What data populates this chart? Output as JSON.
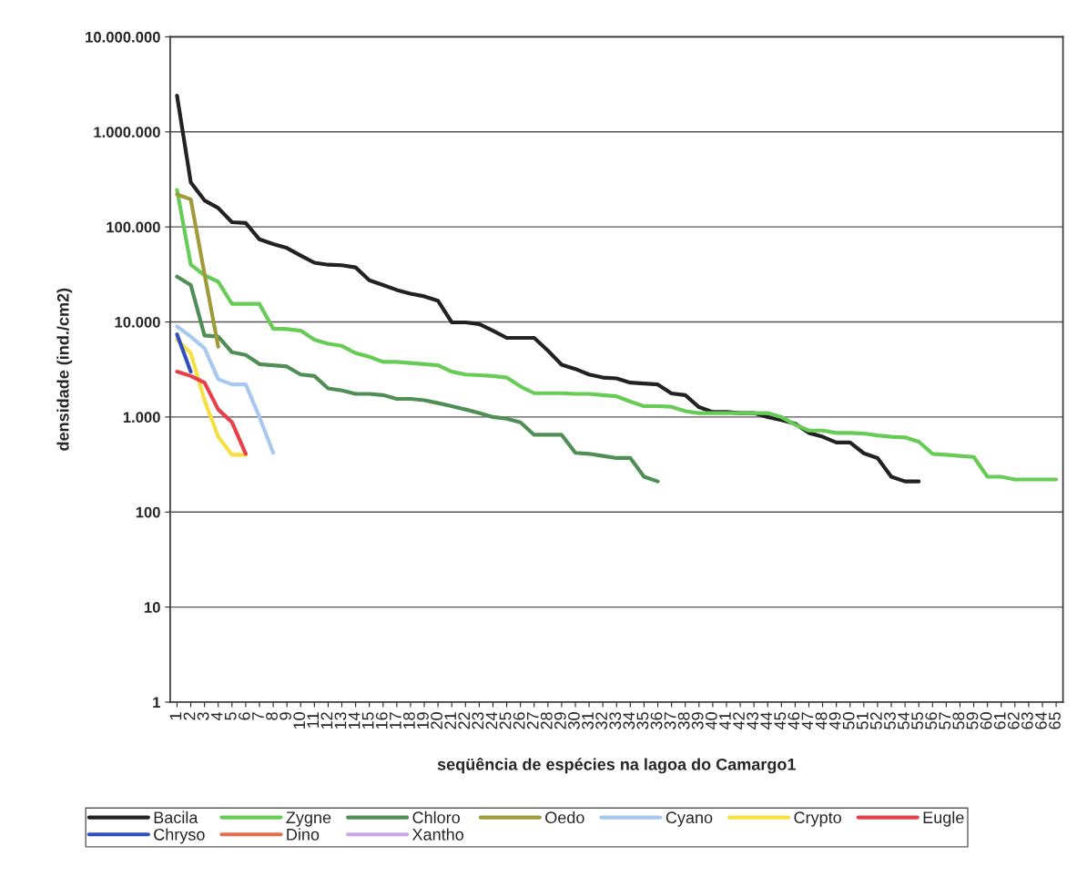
{
  "chart_data": {
    "type": "line",
    "xlabel": "seqüência de espécies na lagoa do Camargo1",
    "ylabel": "densidade (ind./cm2)",
    "categories": [
      "1",
      "2",
      "3",
      "4",
      "5",
      "6",
      "7",
      "8",
      "9",
      "10",
      "11",
      "12",
      "13",
      "14",
      "15",
      "16",
      "17",
      "18",
      "19",
      "20",
      "21",
      "22",
      "23",
      "24",
      "25",
      "26",
      "27",
      "28",
      "29",
      "30",
      "31",
      "32",
      "33",
      "34",
      "35",
      "36",
      "37",
      "38",
      "39",
      "40",
      "41",
      "42",
      "43",
      "44",
      "45",
      "46",
      "47",
      "48",
      "49",
      "50",
      "51",
      "52",
      "53",
      "54",
      "55",
      "56",
      "57",
      "58",
      "59",
      "60",
      "61",
      "62",
      "63",
      "64",
      "65"
    ],
    "log": true,
    "ylim": [
      1,
      10000000
    ],
    "yticks": [
      {
        "value": 1,
        "label": "1"
      },
      {
        "value": 10,
        "label": "10"
      },
      {
        "value": 100,
        "label": "100"
      },
      {
        "value": 1000,
        "label": "1.000"
      },
      {
        "value": 10000,
        "label": "10.000"
      },
      {
        "value": 100000,
        "label": "100.000"
      },
      {
        "value": 1000000,
        "label": "1.000.000"
      },
      {
        "value": 10000000,
        "label": "10.000.000"
      }
    ],
    "grid": "y",
    "legend": "bottom",
    "marker": "none",
    "line_style": "solid",
    "series": [
      {
        "name": "Bacila",
        "color": "#222222",
        "values": [
          2400000,
          295000,
          190000,
          158000,
          112000,
          110000,
          74000,
          66000,
          60000,
          50000,
          42000,
          40000,
          39500,
          37500,
          27500,
          24500,
          21700,
          19800,
          18600,
          16700,
          9900,
          9900,
          9500,
          8100,
          6800,
          6800,
          6800,
          5000,
          3550,
          3200,
          2800,
          2600,
          2550,
          2300,
          2250,
          2200,
          1770,
          1700,
          1270,
          1130,
          1130,
          1100,
          1100,
          1000,
          930,
          850,
          680,
          620,
          540,
          540,
          415,
          370,
          235,
          210,
          210,
          null,
          null,
          null,
          null,
          null,
          null,
          null,
          null,
          null,
          null
        ]
      },
      {
        "name": "Zygne",
        "color": "#66cc55",
        "values": [
          245000,
          40000,
          31000,
          26500,
          15500,
          15500,
          15500,
          8500,
          8400,
          8100,
          6500,
          5900,
          5600,
          4700,
          4300,
          3800,
          3800,
          3700,
          3600,
          3500,
          3000,
          2800,
          2750,
          2700,
          2600,
          2100,
          1780,
          1780,
          1780,
          1750,
          1750,
          1700,
          1650,
          1450,
          1300,
          1300,
          1280,
          1150,
          1100,
          1100,
          1100,
          1100,
          1100,
          1100,
          1000,
          830,
          720,
          720,
          680,
          680,
          670,
          640,
          620,
          610,
          550,
          410,
          400,
          390,
          380,
          235,
          235,
          220,
          220,
          220,
          220
        ]
      },
      {
        "name": "Chloro",
        "color": "#4f8f55",
        "values": [
          30000,
          24500,
          7200,
          7000,
          4800,
          4500,
          3600,
          3500,
          3400,
          2800,
          2700,
          2000,
          1900,
          1750,
          1750,
          1700,
          1550,
          1550,
          1500,
          1400,
          1300,
          1200,
          1100,
          1000,
          960,
          880,
          650,
          650,
          650,
          420,
          410,
          390,
          370,
          370,
          235,
          210,
          null,
          null,
          null,
          null,
          null,
          null,
          null,
          null,
          null,
          null,
          null,
          null,
          null,
          null,
          null,
          null,
          null,
          null,
          null,
          null,
          null,
          null,
          null,
          null,
          null,
          null,
          null,
          null,
          null
        ]
      },
      {
        "name": "Oedo",
        "color": "#a09a3a",
        "values": [
          220000,
          195000,
          32000,
          5500,
          null,
          null,
          null,
          null,
          null,
          null,
          null,
          null,
          null,
          null,
          null,
          null,
          null,
          null,
          null,
          null,
          null,
          null,
          null,
          null,
          null,
          null,
          null,
          null,
          null,
          null,
          null,
          null,
          null,
          null,
          null,
          null,
          null,
          null,
          null,
          null,
          null,
          null,
          null,
          null,
          null,
          null,
          null,
          null,
          null,
          null,
          null,
          null,
          null,
          null,
          null,
          null,
          null,
          null,
          null,
          null,
          null,
          null,
          null,
          null,
          null
        ]
      },
      {
        "name": "Cyano",
        "color": "#a8c8f0",
        "values": [
          9000,
          7000,
          5300,
          2500,
          2200,
          2200,
          1000,
          420,
          null,
          null,
          null,
          null,
          null,
          null,
          null,
          null,
          null,
          null,
          null,
          null,
          null,
          null,
          null,
          null,
          null,
          null,
          null,
          null,
          null,
          null,
          null,
          null,
          null,
          null,
          null,
          null,
          null,
          null,
          null,
          null,
          null,
          null,
          null,
          null,
          null,
          null,
          null,
          null,
          null,
          null,
          null,
          null,
          null,
          null,
          null,
          null,
          null,
          null,
          null,
          null,
          null,
          null,
          null,
          null,
          null
        ]
      },
      {
        "name": "Crypto",
        "color": "#f5e040",
        "values": [
          6500,
          4700,
          1500,
          620,
          400,
          400,
          null,
          null,
          null,
          null,
          null,
          null,
          null,
          null,
          null,
          null,
          null,
          null,
          null,
          null,
          null,
          null,
          null,
          null,
          null,
          null,
          null,
          null,
          null,
          null,
          null,
          null,
          null,
          null,
          null,
          null,
          null,
          null,
          null,
          null,
          null,
          null,
          null,
          null,
          null,
          null,
          null,
          null,
          null,
          null,
          null,
          null,
          null,
          null,
          null,
          null,
          null,
          null,
          null,
          null,
          null,
          null,
          null,
          null,
          null
        ]
      },
      {
        "name": "Eugle",
        "color": "#e8404a",
        "values": [
          3000,
          2700,
          2300,
          1200,
          880,
          410,
          null,
          null,
          null,
          null,
          null,
          null,
          null,
          null,
          null,
          null,
          null,
          null,
          null,
          null,
          null,
          null,
          null,
          null,
          null,
          null,
          null,
          null,
          null,
          null,
          null,
          null,
          null,
          null,
          null,
          null,
          null,
          null,
          null,
          null,
          null,
          null,
          null,
          null,
          null,
          null,
          null,
          null,
          null,
          null,
          null,
          null,
          null,
          null,
          null,
          null,
          null,
          null,
          null,
          null,
          null,
          null,
          null,
          null,
          null
        ]
      },
      {
        "name": "Chryso",
        "color": "#3050c0",
        "values": [
          7400,
          3000,
          null,
          null,
          null,
          null,
          null,
          null,
          null,
          null,
          null,
          null,
          null,
          null,
          null,
          null,
          null,
          null,
          null,
          null,
          null,
          null,
          null,
          null,
          null,
          null,
          null,
          null,
          null,
          null,
          null,
          null,
          null,
          null,
          null,
          null,
          null,
          null,
          null,
          null,
          null,
          null,
          null,
          null,
          null,
          null,
          null,
          null,
          null,
          null,
          null,
          null,
          null,
          null,
          null,
          null,
          null,
          null,
          null,
          null,
          null,
          null,
          null,
          null,
          null
        ]
      },
      {
        "name": "Dino",
        "color": "#e07050",
        "values": [
          null,
          null,
          null,
          null,
          null,
          null,
          null,
          null,
          null,
          null,
          null,
          null,
          null,
          null,
          null,
          null,
          null,
          null,
          null,
          null,
          null,
          null,
          null,
          null,
          null,
          null,
          null,
          null,
          null,
          null,
          null,
          null,
          null,
          null,
          null,
          null,
          null,
          null,
          null,
          null,
          null,
          null,
          null,
          null,
          null,
          null,
          null,
          null,
          null,
          null,
          null,
          null,
          null,
          null,
          null,
          null,
          null,
          null,
          null,
          null,
          null,
          null,
          null,
          null,
          null
        ]
      },
      {
        "name": "Xantho",
        "color": "#c8a8e8",
        "values": [
          null,
          null,
          null,
          null,
          null,
          null,
          null,
          null,
          null,
          null,
          null,
          null,
          null,
          null,
          null,
          null,
          null,
          null,
          null,
          null,
          null,
          null,
          null,
          null,
          null,
          null,
          null,
          null,
          null,
          null,
          null,
          null,
          null,
          null,
          null,
          null,
          null,
          null,
          null,
          null,
          null,
          null,
          null,
          null,
          null,
          null,
          null,
          null,
          null,
          null,
          null,
          null,
          null,
          null,
          null,
          null,
          null,
          null,
          null,
          null,
          null,
          null,
          null,
          null,
          null
        ]
      }
    ]
  }
}
